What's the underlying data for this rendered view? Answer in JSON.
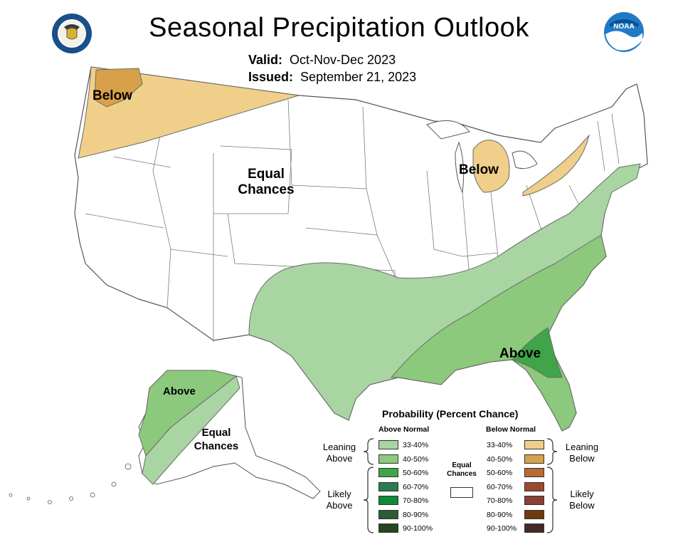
{
  "header": {
    "title": "Seasonal Precipitation Outlook",
    "valid_label": "Valid:",
    "valid_value": "Oct-Nov-Dec 2023",
    "issued_label": "Issued:",
    "issued_value": "September 21, 2023"
  },
  "logos": {
    "left": "doc-seal-icon",
    "right": "noaa-logo-icon"
  },
  "map_labels": {
    "northwest": "Below",
    "great_lakes": "Below",
    "center": [
      "Equal",
      "Chances"
    ],
    "southeast": "Above",
    "alaska_above": "Above",
    "alaska_equal": [
      "Equal",
      "Chances"
    ]
  },
  "legend": {
    "title": "Probability (Percent Chance)",
    "above_header": "Above Normal",
    "below_header": "Below Normal",
    "equal_label": [
      "Equal",
      "Chances"
    ],
    "above_ranges": [
      {
        "label": "33-40%",
        "color": "#a8d5a2"
      },
      {
        "label": "40-50%",
        "color": "#8cc97c"
      },
      {
        "label": "50-60%",
        "color": "#3fa548"
      },
      {
        "label": "60-70%",
        "color": "#2b7a52"
      },
      {
        "label": "70-80%",
        "color": "#0e8a3c"
      },
      {
        "label": "80-90%",
        "color": "#2b5c35"
      },
      {
        "label": "90-100%",
        "color": "#28431f"
      }
    ],
    "below_ranges": [
      {
        "label": "33-40%",
        "color": "#efcf8a"
      },
      {
        "label": "40-50%",
        "color": "#d9a04a"
      },
      {
        "label": "50-60%",
        "color": "#b86a33"
      },
      {
        "label": "60-70%",
        "color": "#9b4a2f"
      },
      {
        "label": "70-80%",
        "color": "#8c3f35"
      },
      {
        "label": "80-90%",
        "color": "#6f3a0e"
      },
      {
        "label": "90-100%",
        "color": "#47282a"
      }
    ],
    "leaning_above": [
      "Leaning",
      "Above"
    ],
    "leaning_below": [
      "Leaning",
      "Below"
    ],
    "likely_above": [
      "Likely",
      "Above"
    ],
    "likely_below": [
      "Likely",
      "Below"
    ]
  }
}
